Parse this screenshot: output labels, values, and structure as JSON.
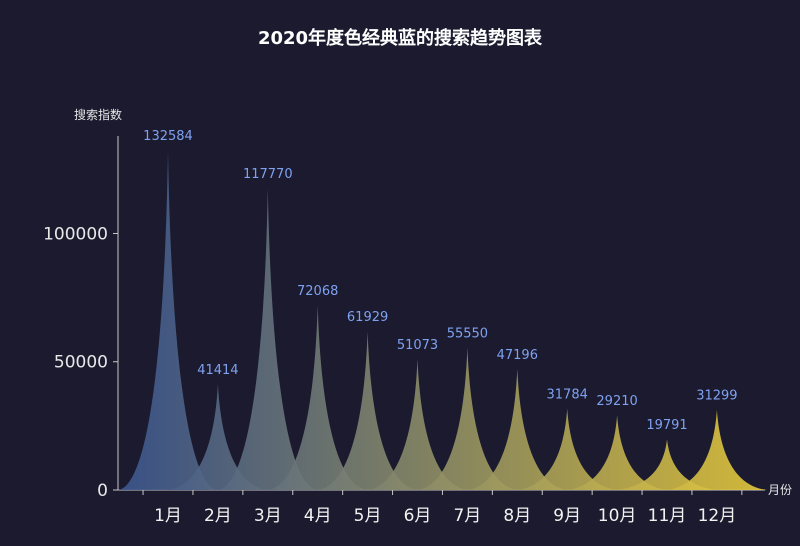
{
  "chart_data": {
    "type": "bar",
    "title": "2020年度色经典蓝的搜索趋势图表",
    "ylabel": "搜索指数",
    "xlabel": "月份",
    "categories": [
      "1月",
      "2月",
      "3月",
      "4月",
      "5月",
      "6月",
      "7月",
      "8月",
      "9月",
      "10月",
      "11月",
      "12月"
    ],
    "values": [
      132584,
      41414,
      117770,
      72068,
      61929,
      51073,
      55550,
      47196,
      31784,
      29210,
      19791,
      31299
    ],
    "ylim": [
      0,
      138000
    ],
    "yticks": [
      0,
      50000,
      100000
    ],
    "ytick_labels": [
      "0",
      "50000",
      "100000"
    ],
    "bar_shape": "pictorial-spike",
    "gradient": {
      "start": "#3b5690",
      "end": "#e6c93a"
    },
    "colors": {
      "background": "#1b1a2e",
      "label": "#7fa2f0",
      "axis": "#c8c8c8"
    }
  }
}
